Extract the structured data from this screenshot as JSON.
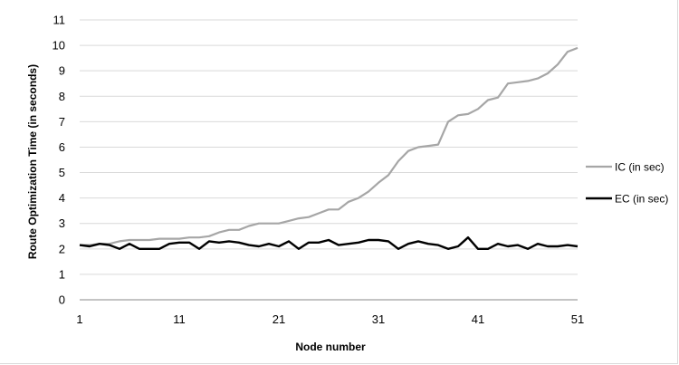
{
  "chart_data": {
    "type": "line",
    "xlabel": "Node number",
    "ylabel": "Route Optimization Time  (in seconds)",
    "ylim": [
      0,
      11
    ],
    "xlim": [
      1,
      51
    ],
    "yticks": [
      "0",
      "1",
      "2",
      "3",
      "4",
      "5",
      "6",
      "7",
      "8",
      "9",
      "10",
      "11"
    ],
    "xticks": [
      "1",
      "11",
      "21",
      "31",
      "41",
      "51"
    ],
    "grid": "horizontal",
    "legend_position": "right",
    "x": [
      1,
      2,
      3,
      4,
      5,
      6,
      7,
      8,
      9,
      10,
      11,
      12,
      13,
      14,
      15,
      16,
      17,
      18,
      19,
      20,
      21,
      22,
      23,
      24,
      25,
      26,
      27,
      28,
      29,
      30,
      31,
      32,
      33,
      34,
      35,
      36,
      37,
      38,
      39,
      40,
      41,
      42,
      43,
      44,
      45,
      46,
      47,
      48,
      49,
      50,
      51
    ],
    "series": [
      {
        "name": "IC (in sec)",
        "color": "#a6a6a6",
        "values": [
          2.15,
          2.15,
          2.2,
          2.2,
          2.3,
          2.35,
          2.35,
          2.35,
          2.4,
          2.4,
          2.4,
          2.45,
          2.45,
          2.5,
          2.65,
          2.75,
          2.75,
          2.9,
          3.0,
          3.0,
          3.0,
          3.1,
          3.2,
          3.25,
          3.4,
          3.55,
          3.55,
          3.85,
          4.0,
          4.25,
          4.6,
          4.9,
          5.45,
          5.85,
          6.0,
          6.05,
          6.1,
          7.0,
          7.25,
          7.3,
          7.5,
          7.85,
          7.95,
          8.5,
          8.55,
          8.6,
          8.7,
          8.9,
          9.25,
          9.75,
          9.9
        ]
      },
      {
        "name": "EC (in sec)",
        "color": "#000000",
        "values": [
          2.15,
          2.1,
          2.2,
          2.15,
          2.0,
          2.2,
          2.0,
          2.0,
          2.0,
          2.2,
          2.25,
          2.25,
          2.0,
          2.3,
          2.25,
          2.3,
          2.25,
          2.15,
          2.1,
          2.2,
          2.1,
          2.3,
          2.0,
          2.25,
          2.25,
          2.35,
          2.15,
          2.2,
          2.25,
          2.35,
          2.35,
          2.3,
          2.0,
          2.2,
          2.3,
          2.2,
          2.15,
          2.0,
          2.1,
          2.45,
          2.0,
          2.0,
          2.2,
          2.1,
          2.15,
          2.0,
          2.2,
          2.1,
          2.1,
          2.15,
          2.1
        ]
      }
    ]
  }
}
